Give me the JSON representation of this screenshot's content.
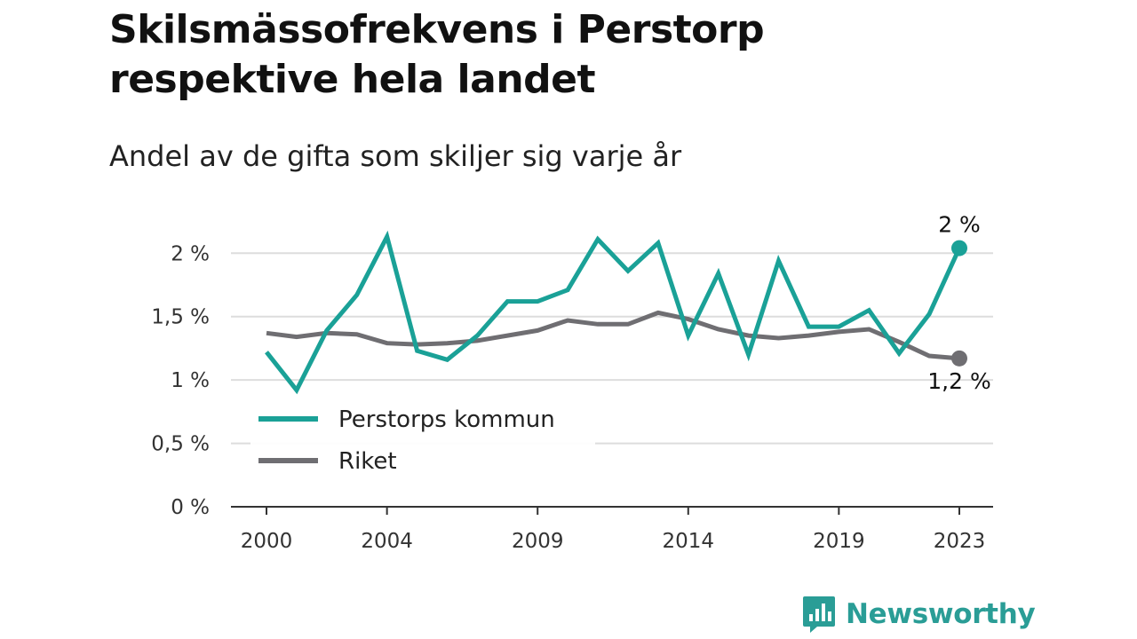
{
  "header": {
    "title": "Skilsmässofrekvens i Perstorp respektive hela landet",
    "subtitle": "Andel av de gifta som skiljer sig varje år"
  },
  "brand": {
    "name": "Newsworthy",
    "icon": "newsworthy-logo-icon",
    "color": "#2a9d96"
  },
  "chart_data": {
    "type": "line",
    "title": "Skilsmässofrekvens i Perstorp respektive hela landet",
    "subtitle": "Andel av de gifta som skiljer sig varje år",
    "x": [
      2000,
      2001,
      2002,
      2003,
      2004,
      2005,
      2006,
      2007,
      2008,
      2009,
      2010,
      2011,
      2012,
      2013,
      2014,
      2015,
      2016,
      2017,
      2018,
      2019,
      2020,
      2021,
      2022,
      2023
    ],
    "x_tick_values": [
      2000,
      2004,
      2009,
      2014,
      2019,
      2023
    ],
    "x_tick_labels": [
      "2000",
      "2004",
      "2009",
      "2014",
      "2019",
      "2023"
    ],
    "y_tick_values": [
      0,
      0.5,
      1,
      1.5,
      2
    ],
    "y_tick_labels": [
      "0 %",
      "0,5 %",
      "1 %",
      "1,5 %",
      "2 %"
    ],
    "ylim": [
      0,
      2.1
    ],
    "grid": true,
    "legend_placement": "lower-left",
    "series": [
      {
        "name": "Perstorps kommun",
        "color": "#1aa197",
        "end_label": "2 %",
        "values": [
          1.22,
          0.92,
          1.39,
          1.67,
          2.13,
          1.23,
          1.16,
          1.35,
          1.62,
          1.62,
          1.71,
          2.11,
          1.86,
          2.08,
          1.35,
          1.84,
          1.2,
          1.94,
          1.42,
          1.42,
          1.55,
          1.21,
          1.52,
          2.04
        ]
      },
      {
        "name": "Riket",
        "color": "#6f6e72",
        "end_label": "1,2 %",
        "values": [
          1.37,
          1.34,
          1.37,
          1.36,
          1.29,
          1.28,
          1.29,
          1.31,
          1.35,
          1.39,
          1.47,
          1.44,
          1.44,
          1.53,
          1.48,
          1.4,
          1.35,
          1.33,
          1.35,
          1.38,
          1.4,
          1.3,
          1.19,
          1.17
        ]
      }
    ]
  }
}
